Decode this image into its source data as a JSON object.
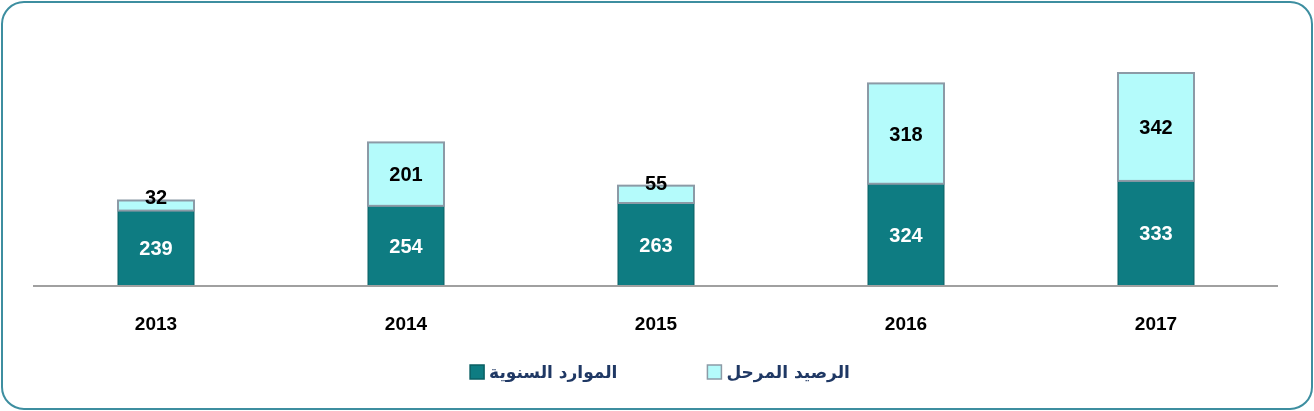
{
  "chart_data": {
    "type": "bar",
    "stacked": true,
    "categories": [
      "2013",
      "2014",
      "2015",
      "2016",
      "2017"
    ],
    "series": [
      {
        "name": "الموارد السنوية",
        "color": "#0e7c82",
        "values": [
          239,
          254,
          263,
          324,
          333
        ]
      },
      {
        "name": "الرصيد المرحل",
        "color": "#b4fbfb",
        "values": [
          32,
          201,
          55,
          318,
          342
        ]
      }
    ],
    "data_labels": true,
    "legend": "bottom"
  }
}
